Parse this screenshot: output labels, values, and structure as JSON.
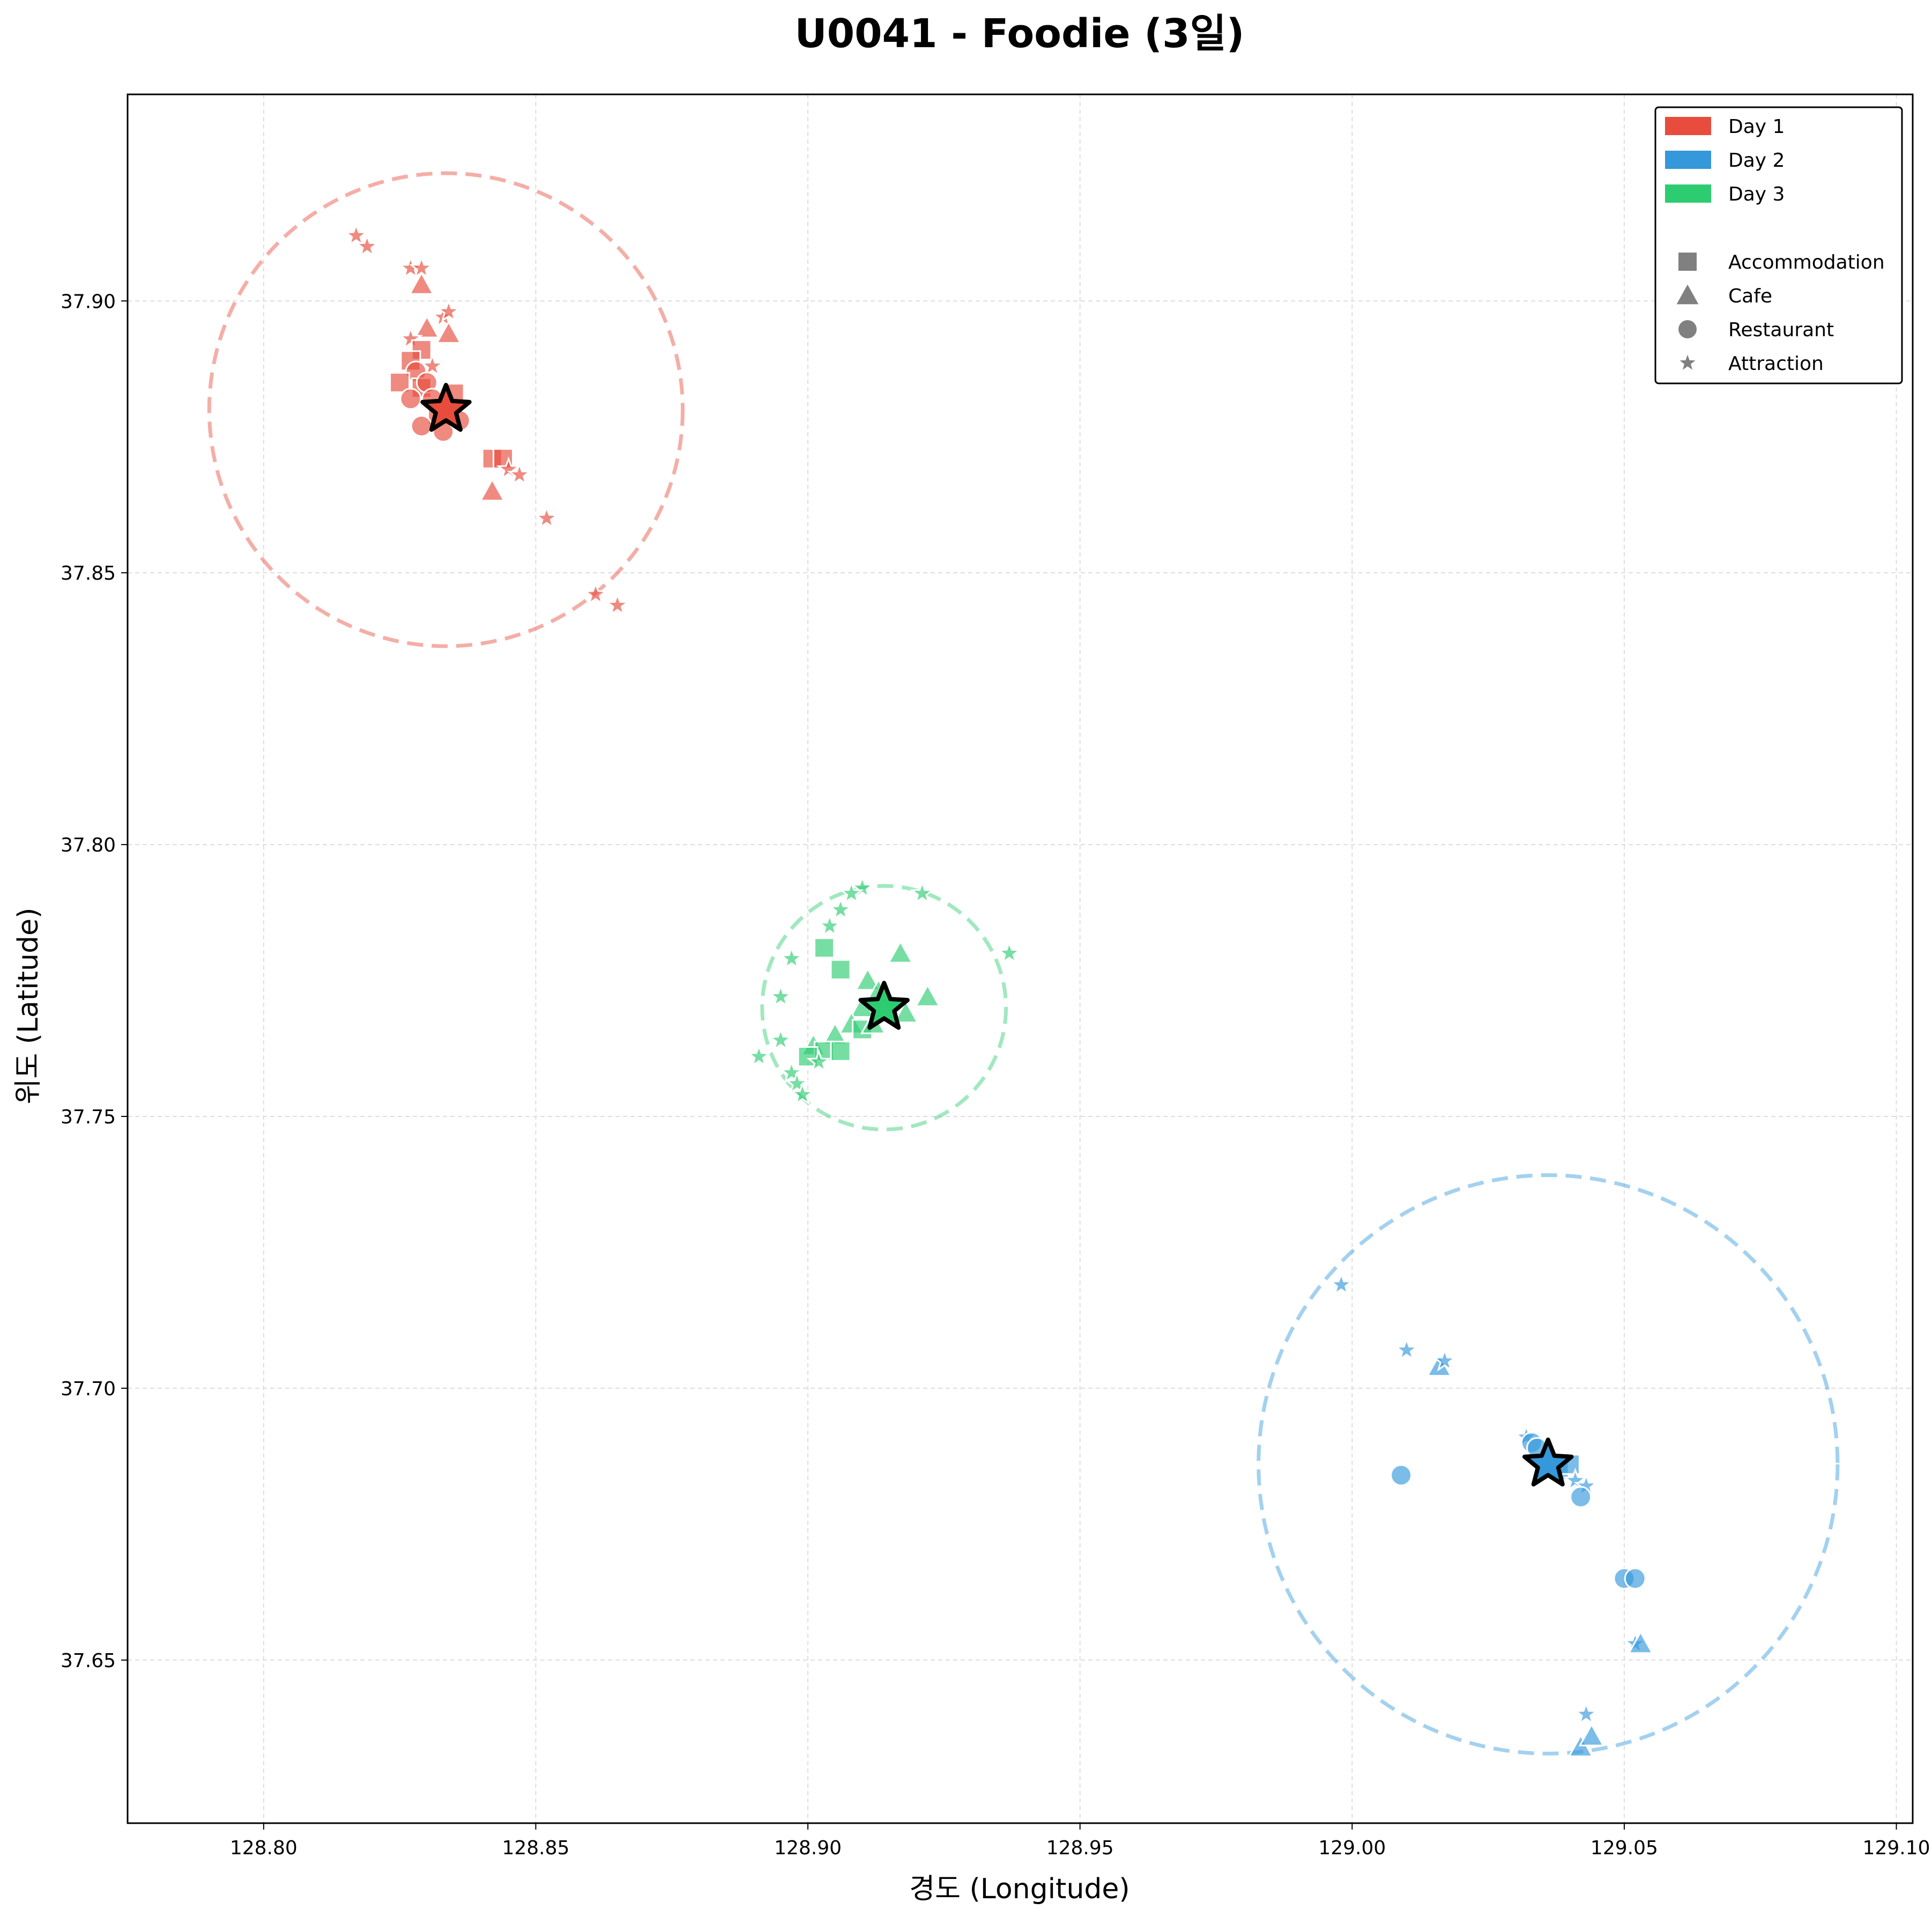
{
  "chart_data": {
    "type": "scatter",
    "title": "U0041 - Foodie (3일)",
    "xlabel": "경도 (Longitude)",
    "ylabel": "위도 (Latitude)",
    "xlim": [
      128.775,
      129.103
    ],
    "ylim": [
      37.62,
      37.938
    ],
    "xticks": [
      128.8,
      128.85,
      128.9,
      128.95,
      129.0,
      129.05,
      129.1
    ],
    "xtick_labels": [
      "128.80",
      "128.85",
      "128.90",
      "128.95",
      "129.00",
      "129.05",
      "129.10"
    ],
    "yticks": [
      37.65,
      37.7,
      37.75,
      37.8,
      37.85,
      37.9
    ],
    "ytick_labels": [
      "37.65",
      "37.70",
      "37.75",
      "37.80",
      "37.85",
      "37.90"
    ],
    "grid": true,
    "legend_position": "top-right",
    "legend": {
      "days": [
        {
          "label": "Day 1",
          "color": "#e74c3c"
        },
        {
          "label": "Day 2",
          "color": "#3498db"
        },
        {
          "label": "Day 3",
          "color": "#2ecc71"
        }
      ],
      "categories": [
        {
          "label": "Accommodation",
          "shape": "square"
        },
        {
          "label": "Cafe",
          "shape": "triangle"
        },
        {
          "label": "Restaurant",
          "shape": "circle"
        },
        {
          "label": "Attraction",
          "shape": "star"
        }
      ]
    },
    "series": [
      {
        "day": "Day 1",
        "color": "#e74c3c",
        "center": [
          128.8335,
          37.88
        ],
        "radius_deg": 0.0435,
        "points": [
          [
            128.817,
            37.912,
            "star"
          ],
          [
            128.819,
            37.91,
            "star"
          ],
          [
            128.827,
            37.906,
            "star"
          ],
          [
            128.829,
            37.906,
            "star"
          ],
          [
            128.829,
            37.903,
            "triangle"
          ],
          [
            128.833,
            37.897,
            "star"
          ],
          [
            128.834,
            37.898,
            "star"
          ],
          [
            128.83,
            37.895,
            "triangle"
          ],
          [
            128.834,
            37.894,
            "triangle"
          ],
          [
            128.827,
            37.893,
            "star"
          ],
          [
            128.829,
            37.891,
            "square"
          ],
          [
            128.827,
            37.889,
            "square"
          ],
          [
            128.831,
            37.888,
            "star"
          ],
          [
            128.828,
            37.887,
            "circle"
          ],
          [
            128.825,
            37.885,
            "square"
          ],
          [
            128.829,
            37.884,
            "square"
          ],
          [
            128.83,
            37.885,
            "circle"
          ],
          [
            128.827,
            37.882,
            "circle"
          ],
          [
            128.831,
            37.882,
            "circle"
          ],
          [
            128.835,
            37.883,
            "square"
          ],
          [
            128.832,
            37.879,
            "square"
          ],
          [
            128.829,
            37.877,
            "circle"
          ],
          [
            128.833,
            37.876,
            "circle"
          ],
          [
            128.836,
            37.878,
            "circle"
          ],
          [
            128.842,
            37.871,
            "square"
          ],
          [
            128.844,
            37.871,
            "square"
          ],
          [
            128.845,
            37.869,
            "star"
          ],
          [
            128.847,
            37.868,
            "star"
          ],
          [
            128.842,
            37.865,
            "triangle"
          ],
          [
            128.852,
            37.86,
            "star"
          ],
          [
            128.861,
            37.846,
            "star"
          ],
          [
            128.865,
            37.844,
            "star"
          ]
        ]
      },
      {
        "day": "Day 2",
        "color": "#3498db",
        "center": [
          129.036,
          37.686
        ],
        "radius_deg": 0.0532,
        "points": [
          [
            128.998,
            37.719,
            "star"
          ],
          [
            129.01,
            37.707,
            "star"
          ],
          [
            129.016,
            37.704,
            "triangle"
          ],
          [
            129.017,
            37.705,
            "star"
          ],
          [
            129.032,
            37.691,
            "star"
          ],
          [
            129.033,
            37.69,
            "circle"
          ],
          [
            129.034,
            37.689,
            "circle"
          ],
          [
            129.036,
            37.686,
            "square"
          ],
          [
            129.038,
            37.685,
            "square"
          ],
          [
            129.04,
            37.686,
            "square"
          ],
          [
            129.041,
            37.683,
            "star"
          ],
          [
            129.043,
            37.682,
            "star"
          ],
          [
            129.042,
            37.68,
            "circle"
          ],
          [
            129.009,
            37.684,
            "circle"
          ],
          [
            129.05,
            37.665,
            "circle"
          ],
          [
            129.052,
            37.665,
            "circle"
          ],
          [
            129.052,
            37.653,
            "star"
          ],
          [
            129.053,
            37.653,
            "triangle"
          ],
          [
            129.043,
            37.64,
            "star"
          ],
          [
            129.042,
            37.634,
            "triangle"
          ],
          [
            129.044,
            37.636,
            "triangle"
          ]
        ]
      },
      {
        "day": "Day 3",
        "color": "#2ecc71",
        "center": [
          128.914,
          37.77
        ],
        "radius_deg": 0.0224,
        "points": [
          [
            128.91,
            37.792,
            "star"
          ],
          [
            128.908,
            37.791,
            "star"
          ],
          [
            128.921,
            37.791,
            "star"
          ],
          [
            128.906,
            37.788,
            "star"
          ],
          [
            128.904,
            37.785,
            "star"
          ],
          [
            128.903,
            37.781,
            "square"
          ],
          [
            128.906,
            37.777,
            "square"
          ],
          [
            128.897,
            37.779,
            "star"
          ],
          [
            128.917,
            37.78,
            "triangle"
          ],
          [
            128.937,
            37.78,
            "star"
          ],
          [
            128.911,
            37.775,
            "triangle"
          ],
          [
            128.913,
            37.773,
            "triangle"
          ],
          [
            128.922,
            37.772,
            "triangle"
          ],
          [
            128.895,
            37.772,
            "star"
          ],
          [
            128.91,
            37.77,
            "triangle"
          ],
          [
            128.918,
            37.769,
            "triangle"
          ],
          [
            128.908,
            37.767,
            "triangle"
          ],
          [
            128.91,
            37.766,
            "square"
          ],
          [
            128.912,
            37.767,
            "triangle"
          ],
          [
            128.905,
            37.765,
            "triangle"
          ],
          [
            128.901,
            37.763,
            "triangle"
          ],
          [
            128.903,
            37.762,
            "square"
          ],
          [
            128.906,
            37.762,
            "square"
          ],
          [
            128.9,
            37.761,
            "square"
          ],
          [
            128.895,
            37.764,
            "star"
          ],
          [
            128.891,
            37.761,
            "star"
          ],
          [
            128.902,
            37.76,
            "star"
          ],
          [
            128.897,
            37.758,
            "star"
          ],
          [
            128.898,
            37.756,
            "star"
          ],
          [
            128.899,
            37.754,
            "star"
          ]
        ]
      }
    ]
  }
}
